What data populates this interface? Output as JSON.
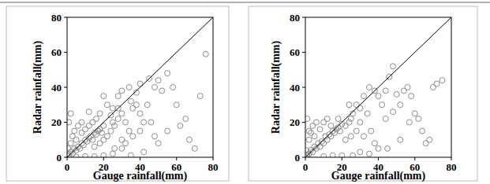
{
  "chart_data": [
    {
      "type": "scatter",
      "xlabel": "Gauge rainfall(mm)",
      "ylabel": "Radar rainfall(mm)",
      "xlim": [
        0,
        80
      ],
      "ylim": [
        0,
        80
      ],
      "xticks": [
        0,
        20,
        40,
        60,
        80
      ],
      "yticks": [
        0,
        20,
        40,
        60,
        80
      ],
      "x": [
        1,
        2,
        3,
        4,
        5,
        6,
        7,
        8,
        9,
        10,
        11,
        12,
        13,
        14,
        15,
        16,
        17,
        18,
        19,
        20,
        2,
        3,
        5,
        4,
        6,
        8,
        10,
        12,
        1,
        2,
        15,
        18,
        20,
        22,
        24,
        25,
        26,
        28,
        30,
        32,
        22,
        25,
        20,
        28,
        30,
        35,
        36,
        38,
        40,
        42,
        34,
        30,
        26,
        32,
        36,
        40,
        44,
        45,
        48,
        50,
        52,
        46,
        48,
        50,
        55,
        55,
        58,
        60,
        62,
        65,
        67,
        70,
        73,
        76,
        40,
        38,
        34,
        30,
        25,
        35,
        42,
        20,
        15,
        10,
        5,
        0.5,
        0.5,
        24,
        28,
        14,
        16,
        18,
        12,
        8
      ],
      "series": [
        {
          "color": "#8c8c8c",
          "marker": "circle",
          "values": [
            1,
            3,
            2,
            5,
            4,
            6,
            5,
            8,
            7,
            10,
            9,
            11,
            12,
            10,
            14,
            13,
            15,
            16,
            14,
            18,
            8,
            12,
            10,
            15,
            18,
            14,
            16,
            18,
            20,
            25,
            6,
            8,
            10,
            12,
            15,
            20,
            18,
            22,
            25,
            20,
            30,
            28,
            35,
            35,
            38,
            32,
            28,
            30,
            25,
            20,
            15,
            10,
            5,
            8,
            12,
            15,
            30,
            45,
            40,
            44,
            38,
            20,
            12,
            8,
            15,
            48,
            40,
            30,
            18,
            22,
            10,
            5,
            35,
            59,
            42,
            37,
            40,
            5,
            2,
            1,
            3,
            1,
            0.5,
            0.5,
            0.2,
            5,
            2,
            24,
            28,
            20,
            22,
            25,
            26,
            20
          ]
        }
      ]
    },
    {
      "type": "scatter",
      "xlabel": "Gauge rainfall(mm)",
      "ylabel": "Radar rainfall(mm)",
      "xlim": [
        0,
        80
      ],
      "ylim": [
        0,
        80
      ],
      "xticks": [
        0,
        20,
        40,
        60,
        80
      ],
      "yticks": [
        0,
        20,
        40,
        60,
        80
      ],
      "x": [
        1,
        2,
        3,
        4,
        5,
        6,
        7,
        8,
        9,
        10,
        11,
        12,
        13,
        14,
        15,
        16,
        17,
        18,
        19,
        20,
        2,
        3,
        5,
        4,
        6,
        8,
        10,
        1,
        2,
        22,
        24,
        25,
        26,
        28,
        30,
        32,
        22,
        25,
        28,
        30,
        32,
        34,
        35,
        38,
        40,
        42,
        44,
        36,
        38,
        40,
        30,
        26,
        44,
        46,
        48,
        50,
        52,
        54,
        56,
        58,
        60,
        62,
        64,
        66,
        68,
        70,
        72,
        75,
        57,
        52,
        45,
        20,
        15,
        10,
        0.5,
        0.5,
        24,
        18,
        14,
        12,
        35,
        48
      ],
      "series": [
        {
          "color": "#8c8c8c",
          "marker": "circle",
          "values": [
            1,
            2,
            4,
            3,
            6,
            5,
            8,
            6,
            9,
            8,
            12,
            10,
            13,
            12,
            15,
            14,
            16,
            17,
            15,
            19,
            10,
            14,
            12,
            18,
            20,
            16,
            20,
            22,
            15,
            18,
            20,
            22,
            25,
            30,
            28,
            35,
            10,
            12,
            15,
            20,
            12,
            25,
            40,
            38,
            35,
            30,
            22,
            15,
            8,
            5,
            3,
            1,
            38,
            46,
            52,
            36,
            30,
            38,
            40,
            35,
            25,
            22,
            15,
            8,
            10,
            40,
            42,
            44,
            20,
            10,
            5,
            1,
            1,
            0.5,
            4,
            1,
            30,
            22,
            18,
            22,
            2,
            26
          ]
        }
      ]
    }
  ]
}
